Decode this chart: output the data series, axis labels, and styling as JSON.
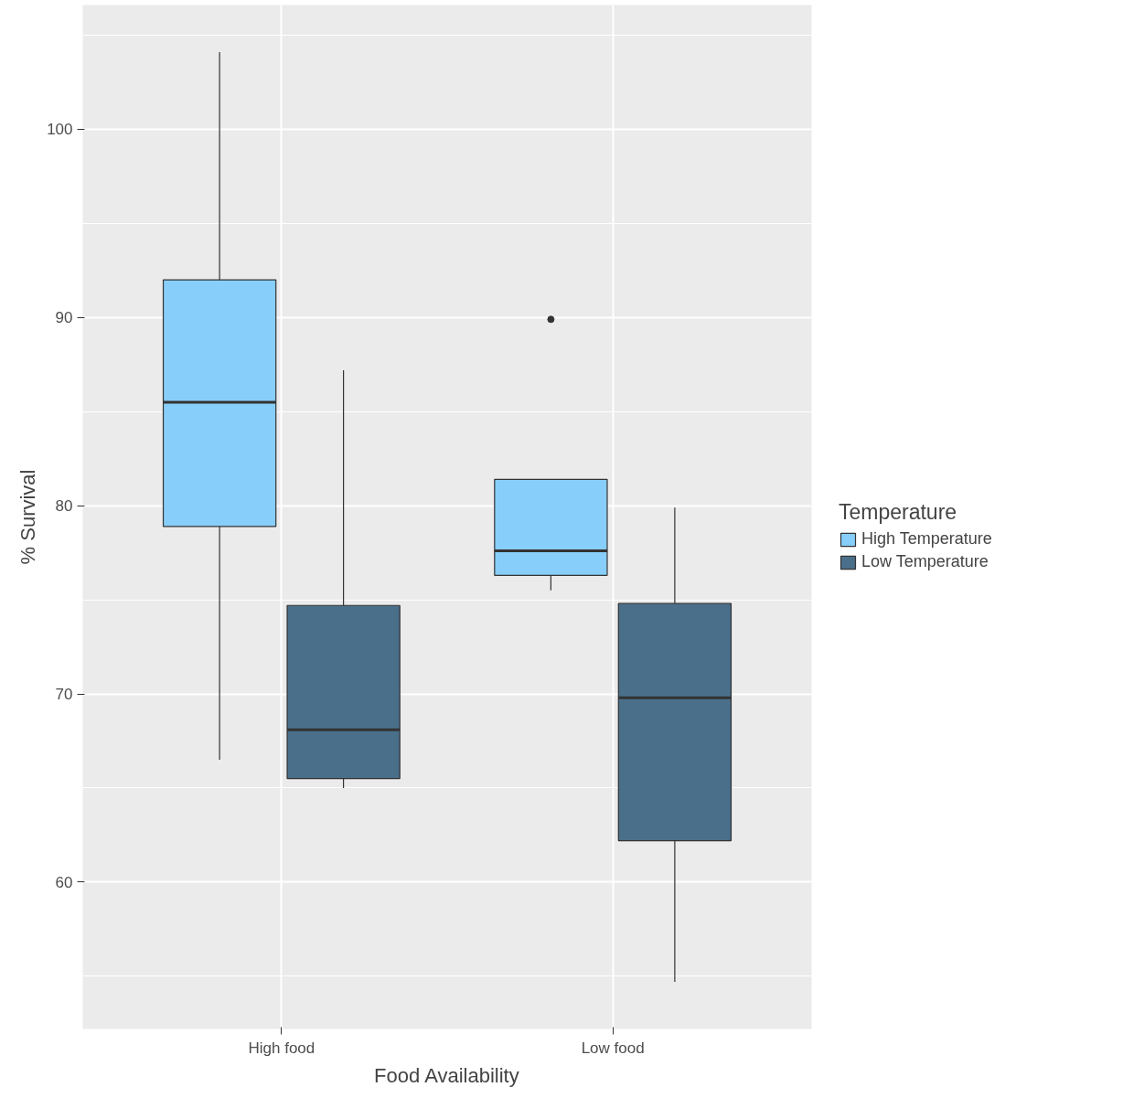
{
  "chart_data": {
    "type": "box",
    "xlabel": "Food Availability",
    "ylabel": "% Survival",
    "legend_title": "Temperature",
    "categories": [
      "High food",
      "Low food"
    ],
    "ylim": [
      52.2,
      106.6
    ],
    "yticks": [
      60,
      70,
      80,
      90,
      100
    ],
    "grid": true,
    "legend": "right",
    "series": [
      {
        "name": "High Temperature",
        "color": "#87cefa",
        "boxes": [
          {
            "low": 66.5,
            "q1": 78.9,
            "median": 85.5,
            "q3": 92.0,
            "high": 104.1
          },
          {
            "low": 75.5,
            "q1": 76.3,
            "median": 77.6,
            "q3": 81.4,
            "high": 81.4,
            "outliers": [
              89.9
            ]
          }
        ]
      },
      {
        "name": "Low Temperature",
        "color": "#4a6f8a",
        "boxes": [
          {
            "low": 65.0,
            "q1": 65.5,
            "median": 68.1,
            "q3": 74.7,
            "high": 87.2
          },
          {
            "low": 54.7,
            "q1": 62.2,
            "median": 69.8,
            "q3": 74.8,
            "high": 79.9
          }
        ]
      }
    ]
  }
}
